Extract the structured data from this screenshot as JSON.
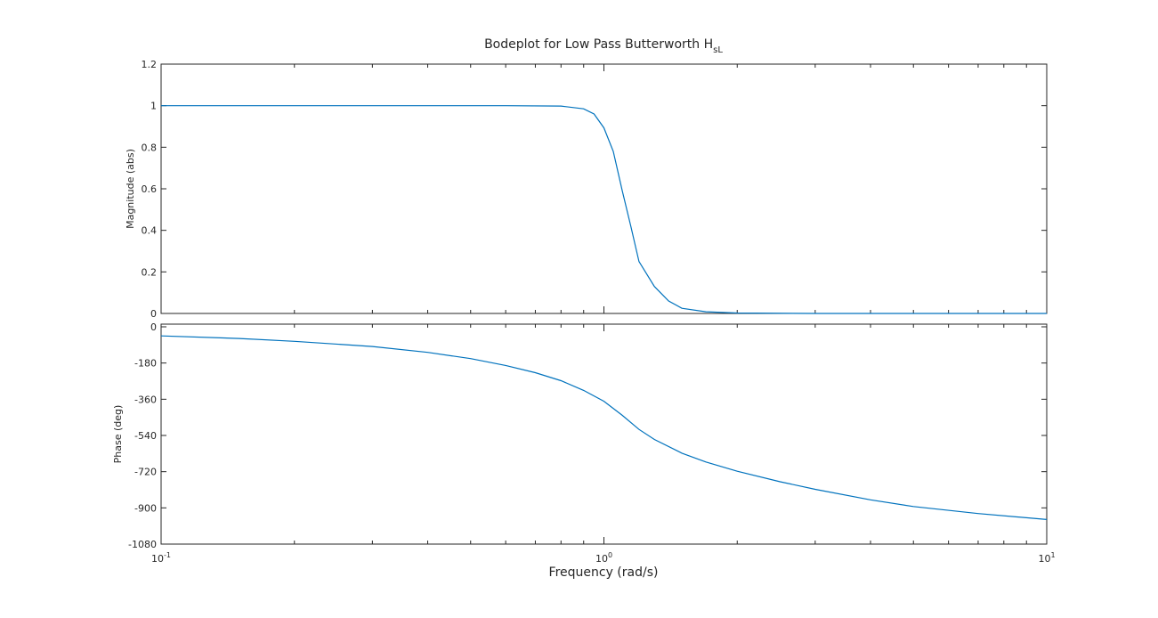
{
  "chart_data": {
    "type": "line",
    "title": "Bodeplot for Low Pass Butterworth H",
    "title_subscript": "sL",
    "xlabel": "Frequency  (rad/s)",
    "xscale": "log",
    "xlim": [
      0.1,
      10
    ],
    "x_ticks": [
      {
        "value": 0.1,
        "base": "10",
        "exp": "-1"
      },
      {
        "value": 1,
        "base": "10",
        "exp": "0"
      },
      {
        "value": 10,
        "base": "10",
        "exp": "1"
      }
    ],
    "line_color": "#0072bd",
    "panels": [
      {
        "name": "magnitude",
        "ylabel": "Magnitude (abs)",
        "ylim": [
          0,
          1.2
        ],
        "y_ticks": [
          "0",
          "0.2",
          "0.4",
          "0.6",
          "0.8",
          "1",
          "1.2"
        ],
        "y_tick_values": [
          0,
          0.2,
          0.4,
          0.6,
          0.8,
          1,
          1.2
        ],
        "series": {
          "x": [
            0.1,
            0.2,
            0.4,
            0.6,
            0.8,
            0.9,
            0.95,
            1.0,
            1.05,
            1.1,
            1.15,
            1.2,
            1.3,
            1.4,
            1.5,
            1.7,
            2.0,
            3.0,
            5.0,
            10.0
          ],
          "y": [
            1,
            1,
            1,
            1,
            0.998,
            0.985,
            0.96,
            0.893,
            0.78,
            0.59,
            0.42,
            0.25,
            0.13,
            0.06,
            0.025,
            0.008,
            0.002,
            0,
            0,
            0
          ]
        }
      },
      {
        "name": "phase",
        "ylabel": "Phase (deg)",
        "ylim": [
          -1080,
          0
        ],
        "y_ticks": [
          "0",
          "-180",
          "-360",
          "-540",
          "-720",
          "-900",
          "-1080"
        ],
        "y_tick_values": [
          0,
          -180,
          -360,
          -540,
          -720,
          -900,
          -1080
        ],
        "series": {
          "x": [
            0.1,
            0.15,
            0.2,
            0.3,
            0.4,
            0.5,
            0.6,
            0.7,
            0.8,
            0.9,
            1.0,
            1.1,
            1.2,
            1.3,
            1.5,
            1.7,
            2.0,
            2.5,
            3.0,
            4.0,
            5.0,
            7.0,
            10.0
          ],
          "y": [
            -45,
            -58,
            -72,
            -98,
            -127,
            -158,
            -192,
            -228,
            -268,
            -316,
            -370,
            -440,
            -510,
            -560,
            -628,
            -672,
            -718,
            -770,
            -808,
            -860,
            -893,
            -928,
            -958
          ]
        }
      }
    ]
  }
}
